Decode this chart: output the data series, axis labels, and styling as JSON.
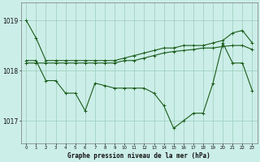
{
  "title": "Graphe pression niveau de la mer (hPa)",
  "bg_color": "#cceee8",
  "grid_color": "#99ccbb",
  "line_color": "#1a5c1a",
  "hours": [
    0,
    1,
    2,
    3,
    4,
    5,
    6,
    7,
    8,
    9,
    10,
    11,
    12,
    13,
    14,
    15,
    16,
    17,
    18,
    19,
    20,
    21,
    22,
    23
  ],
  "s1": [
    1019.0,
    1018.65,
    1018.2,
    1018.2,
    1018.2,
    1018.2,
    1018.2,
    1018.2,
    1018.2,
    1018.2,
    1018.25,
    1018.3,
    1018.35,
    1018.4,
    1018.45,
    1018.45,
    1018.5,
    1018.5,
    1018.5,
    1018.55,
    1018.6,
    1018.75,
    1018.8,
    1018.55
  ],
  "s2": [
    1018.15,
    1018.15,
    1018.15,
    1018.15,
    1018.15,
    1018.15,
    1018.15,
    1018.15,
    1018.15,
    1018.15,
    1018.2,
    1018.2,
    1018.25,
    1018.3,
    1018.35,
    1018.38,
    1018.4,
    1018.42,
    1018.45,
    1018.45,
    1018.48,
    1018.5,
    1018.5,
    1018.42
  ],
  "s3": [
    1018.2,
    1018.2,
    1017.8,
    1017.8,
    1017.55,
    1017.55,
    1017.2,
    1017.75,
    1017.7,
    1017.65,
    1017.65,
    1017.65,
    1017.65,
    1017.55,
    1017.3,
    1016.85,
    1017.0,
    1017.15,
    1017.15,
    1017.75,
    1018.55,
    1018.15,
    1018.15,
    1017.6
  ],
  "ylim": [
    1016.55,
    1019.35
  ],
  "yticks": [
    1017,
    1018,
    1019
  ],
  "xlim": [
    -0.5,
    23.5
  ]
}
